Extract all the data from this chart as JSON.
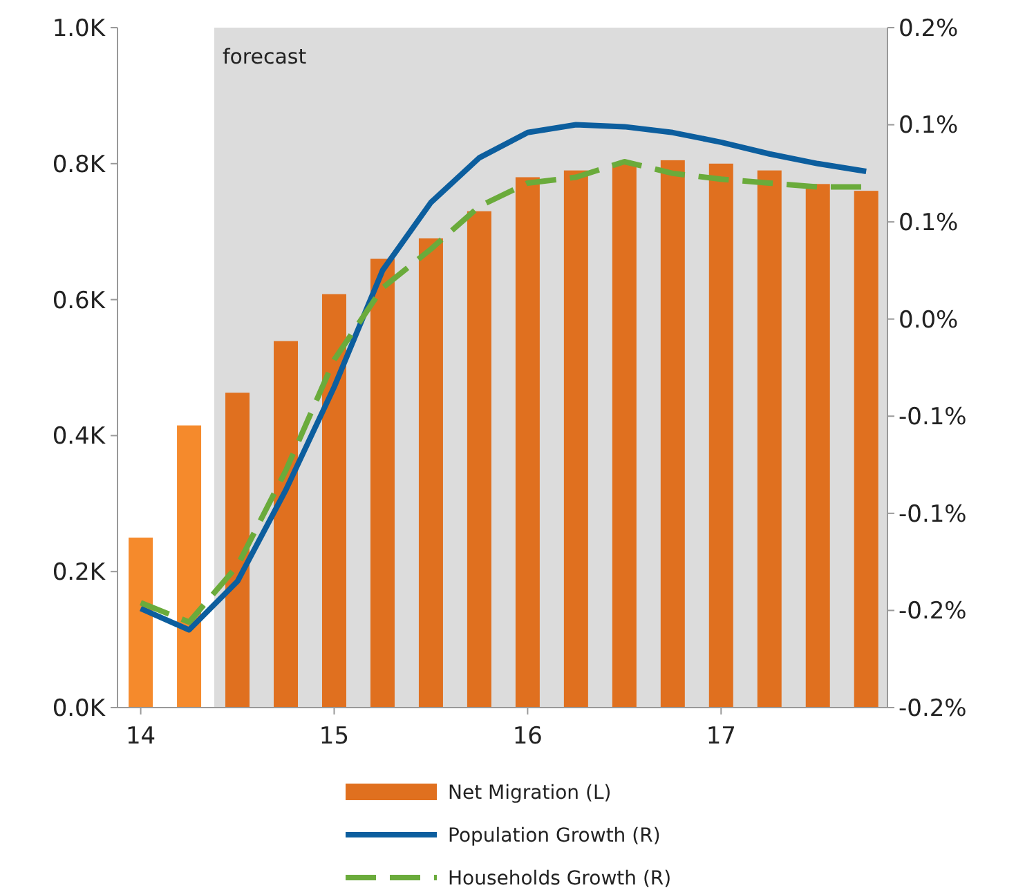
{
  "chart_data": {
    "type": "bar",
    "x": [
      14,
      14.25,
      14.5,
      14.75,
      15,
      15.25,
      15.5,
      15.75,
      16,
      16.25,
      16.5,
      16.75,
      17,
      17.25,
      17.5,
      17.75
    ],
    "series": [
      {
        "name": "Net Migration (L)",
        "colors": [
          "#f58a2c",
          "#f58a2c",
          "#e0701f",
          "#e0701f",
          "#e0701f",
          "#e0701f",
          "#e0701f",
          "#e0701f",
          "#e0701f",
          "#e0701f",
          "#e0701f",
          "#e0701f",
          "#e0701f",
          "#e0701f",
          "#e0701f",
          "#e0701f"
        ],
        "color": "#e0701f",
        "values": [
          0.25,
          0.415,
          0.463,
          0.539,
          0.608,
          0.66,
          0.69,
          0.73,
          0.78,
          0.79,
          0.8,
          0.805,
          0.8,
          0.79,
          0.77,
          0.76
        ]
      },
      {
        "name": "Population Growth (R)",
        "type": "line",
        "axis": "y2",
        "color": "#0c5e9e",
        "line_style": "solid",
        "values": [
          -0.149,
          -0.16,
          -0.135,
          -0.088,
          -0.035,
          0.025,
          0.06,
          0.083,
          0.096,
          0.1,
          0.099,
          0.096,
          0.091,
          0.085,
          0.08,
          0.076
        ]
      },
      {
        "name": "Households Growth (R)",
        "type": "line",
        "axis": "y2",
        "color": "#6aab3b",
        "line_style": "dashed",
        "values": [
          -0.146,
          -0.156,
          -0.127,
          -0.078,
          -0.021,
          0.016,
          0.036,
          0.058,
          0.07,
          0.073,
          0.081,
          0.075,
          0.072,
          0.07,
          0.068,
          0.068
        ]
      }
    ],
    "xlim": [
      13.88,
      17.86
    ],
    "xticks": [
      14,
      15,
      16,
      17
    ],
    "ylim": [
      0,
      1
    ],
    "yticks": [
      {
        "value": 0,
        "label": "0.0K"
      },
      {
        "value": 0.2,
        "label": "0.2K"
      },
      {
        "value": 0.4,
        "label": "0.4K"
      },
      {
        "value": 0.6,
        "label": "0.6K"
      },
      {
        "value": 0.8,
        "label": "0.8K"
      },
      {
        "value": 1,
        "label": "1.0K"
      }
    ],
    "y2lim": [
      -0.2,
      0.15
    ],
    "y2ticks": [
      {
        "value": -0.2,
        "label": "-0.2%"
      },
      {
        "value": -0.15,
        "label": "-0.2%"
      },
      {
        "value": -0.1,
        "label": "-0.1%"
      },
      {
        "value": -0.05,
        "label": "-0.1%"
      },
      {
        "value": 0,
        "label": "0.0%"
      },
      {
        "value": 0.05,
        "label": "0.1%"
      },
      {
        "value": 0.1,
        "label": "0.1%"
      },
      {
        "value": 0.15,
        "label": "0.2%"
      }
    ],
    "bands": [
      {
        "axis": "x",
        "from": 14.38,
        "to": 17.86,
        "label": "forecast",
        "color": "#dcdcdc"
      }
    ],
    "grid": false,
    "legend": "bottom",
    "marker": "none"
  }
}
